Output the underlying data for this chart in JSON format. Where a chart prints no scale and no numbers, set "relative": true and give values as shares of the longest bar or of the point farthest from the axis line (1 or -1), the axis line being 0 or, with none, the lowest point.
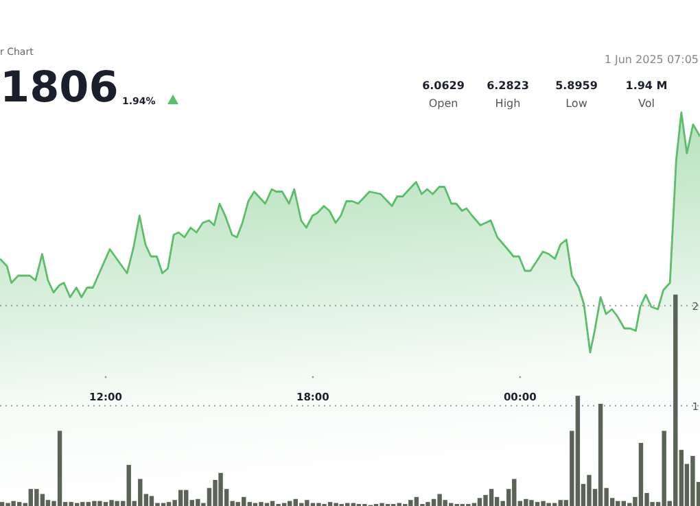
{
  "chart_data": [
    {
      "type": "area",
      "subtitle": "r Chart",
      "relative": true,
      "color": "#5cbd6b",
      "tick_labels": "x",
      "annotations": [
        "1806",
        "1.94%",
        "1 Jun 2025 07:05",
        "6.0629",
        "Open",
        "6.2823",
        "High",
        "5.8959",
        "Low",
        "1.94 M",
        "Vol"
      ],
      "xlim": [
        8.94,
        29.21
      ],
      "xticks": [
        {
          "value": 12,
          "label": "12:00"
        },
        {
          "value": 18,
          "label": "18:00"
        },
        {
          "value": 24,
          "label": "00:00"
        }
      ],
      "x": [
        8.94,
        9.14,
        9.27,
        9.47,
        9.8,
        9.97,
        10.16,
        10.33,
        10.49,
        10.66,
        10.79,
        10.97,
        11.15,
        11.3,
        11.46,
        11.63,
        12.12,
        12.62,
        12.81,
        12.98,
        13.15,
        13.31,
        13.48,
        13.64,
        13.8,
        13.97,
        14.11,
        14.28,
        14.46,
        14.63,
        14.81,
        14.99,
        15.14,
        15.3,
        15.46,
        15.66,
        15.8,
        15.96,
        16.13,
        16.3,
        16.62,
        16.81,
        16.94,
        17.11,
        17.31,
        17.46,
        17.66,
        17.81,
        17.99,
        18.12,
        18.32,
        18.48,
        18.66,
        18.81,
        18.97,
        19.14,
        19.31,
        19.64,
        19.96,
        20.16,
        20.29,
        20.44,
        20.6,
        20.79,
        20.99,
        21.15,
        21.31,
        21.47,
        21.66,
        21.81,
        22.01,
        22.15,
        22.32,
        22.45,
        22.61,
        22.85,
        23.15,
        23.34,
        23.64,
        23.81,
        23.97,
        24.14,
        24.3,
        24.66,
        24.83,
        25.01,
        25.17,
        25.34,
        25.5,
        25.7,
        25.85,
        26.03,
        26.16,
        26.33,
        26.49,
        26.66,
        26.82,
        27.02,
        27.19,
        27.35,
        27.48,
        27.64,
        27.8,
        27.99,
        28.15,
        28.34,
        28.52,
        28.67,
        28.83,
        29.01,
        29.21
      ],
      "values": [
        0.39,
        0.36,
        0.29,
        0.32,
        0.32,
        0.3,
        0.41,
        0.3,
        0.25,
        0.28,
        0.29,
        0.23,
        0.27,
        0.23,
        0.27,
        0.27,
        0.43,
        0.33,
        0.44,
        0.57,
        0.45,
        0.4,
        0.4,
        0.33,
        0.35,
        0.49,
        0.5,
        0.48,
        0.52,
        0.5,
        0.54,
        0.55,
        0.53,
        0.62,
        0.57,
        0.49,
        0.48,
        0.54,
        0.63,
        0.67,
        0.62,
        0.68,
        0.67,
        0.67,
        0.62,
        0.68,
        0.55,
        0.52,
        0.57,
        0.58,
        0.61,
        0.59,
        0.54,
        0.57,
        0.63,
        0.63,
        0.62,
        0.67,
        0.66,
        0.63,
        0.61,
        0.65,
        0.65,
        0.68,
        0.71,
        0.66,
        0.68,
        0.66,
        0.69,
        0.69,
        0.62,
        0.62,
        0.59,
        0.6,
        0.57,
        0.53,
        0.55,
        0.48,
        0.43,
        0.4,
        0.4,
        0.34,
        0.34,
        0.42,
        0.41,
        0.39,
        0.45,
        0.47,
        0.32,
        0.27,
        0.2,
        0,
        0.09,
        0.23,
        0.16,
        0.18,
        0.15,
        0.1,
        0.1,
        0.09,
        0.19,
        0.24,
        0.19,
        0.18,
        0.26,
        0.29,
        0.8,
        1,
        0.83,
        0.95,
        0.9
      ]
    },
    {
      "type": "bar",
      "color": "#5a6356",
      "tick_labels": "y",
      "grid": "y",
      "xlim": [
        8.94,
        29.21
      ],
      "ylim": [
        0,
        5.05
      ],
      "yticks": [
        1,
        2
      ],
      "x": [
        9.0,
        9.17,
        9.33,
        9.5,
        9.67,
        9.83,
        10.0,
        10.17,
        10.33,
        10.5,
        10.67,
        10.83,
        11.0,
        11.17,
        11.33,
        11.5,
        11.67,
        11.83,
        12.0,
        12.17,
        12.33,
        12.5,
        12.67,
        12.83,
        13.0,
        13.17,
        13.33,
        13.5,
        13.67,
        13.83,
        14.0,
        14.17,
        14.33,
        14.5,
        14.67,
        14.83,
        15.0,
        15.17,
        15.33,
        15.5,
        15.67,
        15.83,
        16.0,
        16.17,
        16.33,
        16.5,
        16.67,
        16.83,
        17.0,
        17.17,
        17.33,
        17.5,
        17.67,
        17.83,
        18.0,
        18.17,
        18.33,
        18.5,
        18.67,
        18.83,
        19.0,
        19.17,
        19.33,
        19.5,
        19.67,
        19.83,
        20.0,
        20.17,
        20.33,
        20.5,
        20.67,
        20.83,
        21.0,
        21.17,
        21.33,
        21.5,
        21.67,
        21.83,
        22.0,
        22.17,
        22.33,
        22.5,
        22.67,
        22.83,
        23.0,
        23.17,
        23.33,
        23.5,
        23.67,
        23.83,
        24.0,
        24.17,
        24.33,
        24.5,
        24.67,
        24.83,
        25.0,
        25.17,
        25.33,
        25.5,
        25.67,
        25.83,
        26.0,
        26.17,
        26.33,
        26.5,
        26.67,
        26.83,
        27.0,
        27.17,
        27.33,
        27.5,
        27.67,
        27.83,
        28.0,
        28.17,
        28.33,
        28.5,
        28.67,
        28.83,
        29.0,
        29.17
      ],
      "values": [
        0.04,
        0.03,
        0.05,
        0.04,
        0.03,
        0.17,
        0.17,
        0.12,
        0.06,
        0.05,
        0.75,
        0.04,
        0.04,
        0.03,
        0.04,
        0.04,
        0.05,
        0.05,
        0.04,
        0.06,
        0.05,
        0.05,
        0.41,
        0.05,
        0.27,
        0.12,
        0.1,
        0.03,
        0.03,
        0.04,
        0.06,
        0.16,
        0.16,
        0.06,
        0.07,
        0.03,
        0.18,
        0.26,
        0.33,
        0.17,
        0.05,
        0.04,
        0.09,
        0.04,
        0.03,
        0.04,
        0.03,
        0.05,
        0.02,
        0.03,
        0.05,
        0.07,
        0.03,
        0.06,
        0.03,
        0.03,
        0.02,
        0.04,
        0.03,
        0.02,
        0.03,
        0.03,
        0.02,
        0.02,
        0.01,
        0.02,
        0.03,
        0.02,
        0.02,
        0.03,
        0.02,
        0.06,
        0.09,
        0.02,
        0.04,
        0.07,
        0.12,
        0.06,
        0.03,
        0.02,
        0.02,
        0.02,
        0.03,
        0.08,
        0.11,
        0.17,
        0.09,
        0.05,
        0.17,
        0.27,
        0.05,
        0.07,
        0.06,
        0.04,
        0.05,
        0.03,
        0.03,
        0.06,
        0.06,
        0.75,
        1.1,
        0.22,
        0.31,
        0.17,
        1.02,
        0.18,
        0.08,
        0.05,
        0.05,
        0.03,
        0.09,
        0.63,
        0.13,
        0.04,
        0.04,
        0.75,
        0.05,
        2.11,
        0.56,
        0.42,
        0.5,
        0.24
      ]
    }
  ]
}
